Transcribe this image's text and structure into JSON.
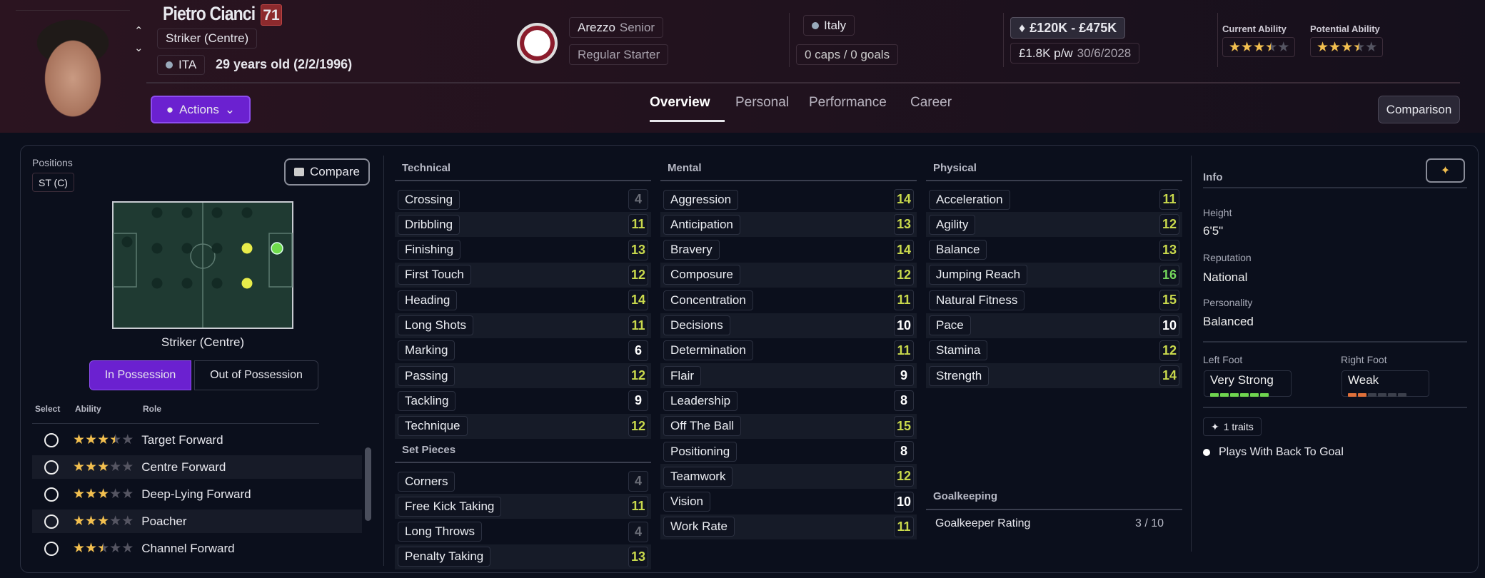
{
  "player": {
    "name": "Pietro Cianci",
    "ca_badge": "71",
    "position": "Striker (Centre)",
    "nation_code": "ITA",
    "age": "29 years old (2/2/1996)"
  },
  "club": {
    "name": "Arezzo",
    "squad": "Senior",
    "status": "Regular Starter"
  },
  "nation": {
    "name": "Italy",
    "caps": "0 caps / 0 goals"
  },
  "contract": {
    "value": "£120K - £475K",
    "wage": "£1.8K p/w",
    "expiry": "30/6/2028"
  },
  "ability": {
    "current_label": "Current Ability",
    "current_stars": 3.5,
    "potential_label": "Potential Ability",
    "potential_stars": 3.5
  },
  "actions_label": "Actions",
  "tabs": [
    {
      "label": "Overview",
      "active": true
    },
    {
      "label": "Personal"
    },
    {
      "label": "Performance"
    },
    {
      "label": "Career"
    }
  ],
  "comparison_label": "Comparison",
  "positions": {
    "label": "Positions",
    "badge": "ST (C)",
    "compare_label": "Compare",
    "selected_position": "Striker (Centre)",
    "toggle": [
      "In Possession",
      "Out of Possession"
    ],
    "toggle_active": 0,
    "columns": [
      "Select",
      "Ability",
      "Role"
    ],
    "roles": [
      {
        "name": "Target Forward",
        "stars": 3.5
      },
      {
        "name": "Centre Forward",
        "stars": 3
      },
      {
        "name": "Deep-Lying Forward",
        "stars": 3
      },
      {
        "name": "Poacher",
        "stars": 3
      },
      {
        "name": "Channel Forward",
        "stars": 2.5
      }
    ]
  },
  "colors": {
    "low": "#6b6e78",
    "mid": "#ffffff",
    "good": "#c9d94c",
    "great": "#74d65b",
    "accent": "#6b21d0",
    "star": "#f2bf4f"
  },
  "technical": {
    "title": "Technical",
    "attrs": [
      [
        "Crossing",
        4
      ],
      [
        "Dribbling",
        11
      ],
      [
        "Finishing",
        13
      ],
      [
        "First Touch",
        12
      ],
      [
        "Heading",
        14
      ],
      [
        "Long Shots",
        11
      ],
      [
        "Marking",
        6
      ],
      [
        "Passing",
        12
      ],
      [
        "Tackling",
        9
      ],
      [
        "Technique",
        12
      ]
    ]
  },
  "set_pieces": {
    "title": "Set Pieces",
    "attrs": [
      [
        "Corners",
        4
      ],
      [
        "Free Kick Taking",
        11
      ],
      [
        "Long Throws",
        4
      ],
      [
        "Penalty Taking",
        13
      ]
    ]
  },
  "mental": {
    "title": "Mental",
    "attrs": [
      [
        "Aggression",
        14
      ],
      [
        "Anticipation",
        13
      ],
      [
        "Bravery",
        14
      ],
      [
        "Composure",
        12
      ],
      [
        "Concentration",
        11
      ],
      [
        "Decisions",
        10
      ],
      [
        "Determination",
        11
      ],
      [
        "Flair",
        9
      ],
      [
        "Leadership",
        8
      ],
      [
        "Off The Ball",
        15
      ],
      [
        "Positioning",
        8
      ],
      [
        "Teamwork",
        12
      ],
      [
        "Vision",
        10
      ],
      [
        "Work Rate",
        11
      ]
    ]
  },
  "physical": {
    "title": "Physical",
    "attrs": [
      [
        "Acceleration",
        11
      ],
      [
        "Agility",
        12
      ],
      [
        "Balance",
        13
      ],
      [
        "Jumping Reach",
        16
      ],
      [
        "Natural Fitness",
        15
      ],
      [
        "Pace",
        10
      ],
      [
        "Stamina",
        12
      ],
      [
        "Strength",
        14
      ]
    ]
  },
  "goalkeeping": {
    "title": "Goalkeeping",
    "rating_label": "Goalkeeper Rating",
    "rating": "3 / 10"
  },
  "info": {
    "title": "Info",
    "height_label": "Height",
    "height": "6'5\"",
    "reputation_label": "Reputation",
    "reputation": "National",
    "personality_label": "Personality",
    "personality": "Balanced",
    "left_foot_label": "Left Foot",
    "left_foot": "Very Strong",
    "left_foot_level": 6,
    "right_foot_label": "Right Foot",
    "right_foot": "Weak",
    "right_foot_level": 2,
    "traits_label": "1 traits",
    "traits": [
      "Plays With Back To Goal"
    ]
  }
}
